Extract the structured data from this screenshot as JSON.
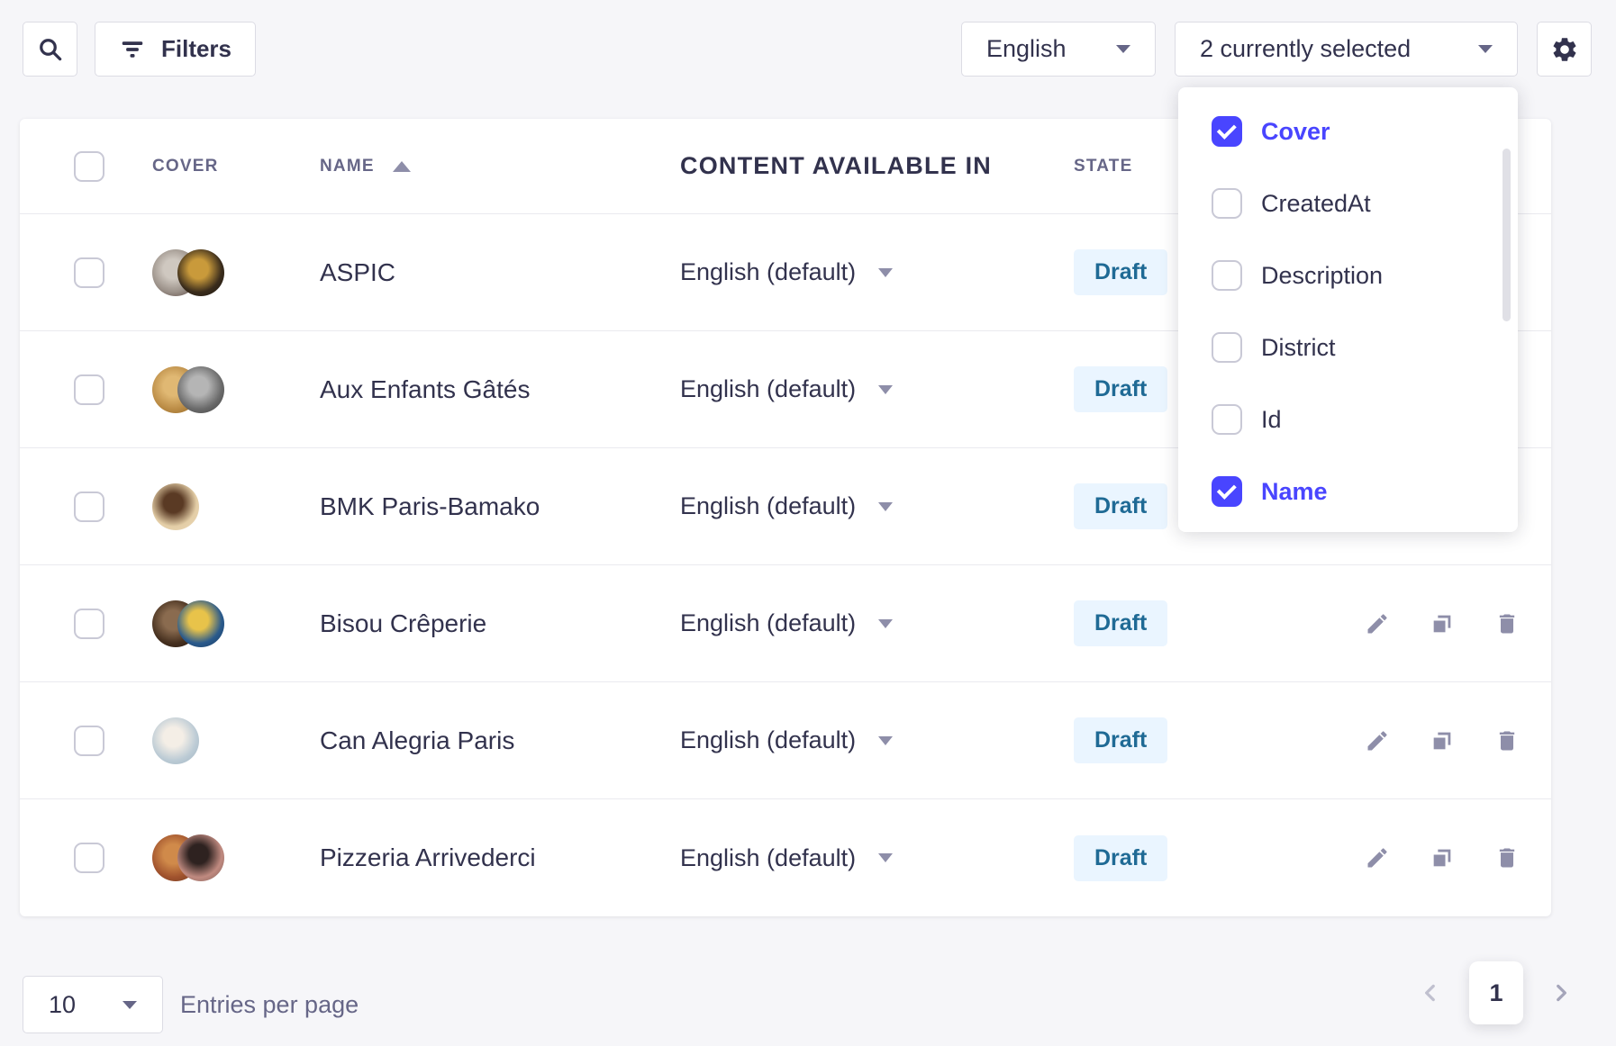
{
  "toolbar": {
    "filters_button": {
      "label": "Filters"
    },
    "language_select": {
      "value": "English"
    },
    "columns_select": {
      "value": "2 currently selected"
    }
  },
  "column_picker": {
    "options": [
      {
        "label": "Cover",
        "checked": true
      },
      {
        "label": "CreatedAt",
        "checked": false
      },
      {
        "label": "Description",
        "checked": false
      },
      {
        "label": "District",
        "checked": false
      },
      {
        "label": "Id",
        "checked": false
      },
      {
        "label": "Name",
        "checked": true
      }
    ]
  },
  "table": {
    "headers": {
      "cover": "COVER",
      "name": "NAME",
      "content_available_in": "CONTENT AVAILABLE IN",
      "state": "STATE"
    },
    "sort": {
      "column": "NAME",
      "direction": "ascending"
    },
    "rows": [
      {
        "name": "ASPIC",
        "language": "English (default)",
        "state": "Draft",
        "covers": [
          [
            "#cfc8c0",
            "#9a9088",
            "#4a3430"
          ],
          [
            "#c99a3b",
            "#3a2c1c",
            "#16120d"
          ]
        ]
      },
      {
        "name": "Aux Enfants Gâtés",
        "language": "English (default)",
        "state": "Draft",
        "covers": [
          [
            "#e0b873",
            "#bb8c46",
            "#8a6220"
          ],
          [
            "#b5b5b5",
            "#6a6a6a",
            "#3d3d3d"
          ]
        ]
      },
      {
        "name": "BMK Paris-Bamako",
        "language": "English (default)",
        "state": "Draft",
        "covers": [
          [
            "#5a3a24",
            "#e3cda6",
            "#eedcbc"
          ]
        ]
      },
      {
        "name": "Bisou Crêperie",
        "language": "English (default)",
        "state": "Draft",
        "covers": [
          [
            "#8a6b4f",
            "#46301f",
            "#241510"
          ],
          [
            "#e8c34a",
            "#2a5a8c",
            "#16365c"
          ]
        ]
      },
      {
        "name": "Can Alegria Paris",
        "language": "English (default)",
        "state": "Draft",
        "covers": [
          [
            "#f4eee6",
            "#bccbd5",
            "#9db2c0"
          ]
        ]
      },
      {
        "name": "Pizzeria Arrivederci",
        "language": "English (default)",
        "state": "Draft",
        "covers": [
          [
            "#d08a4a",
            "#a0522d",
            "#6b3a22"
          ],
          [
            "#2e2220",
            "#c08a80",
            "#7a5a52"
          ]
        ]
      }
    ]
  },
  "pagination": {
    "page_size": "10",
    "entries_label": "Entries per page",
    "current_page": "1"
  },
  "colors": {
    "primary": "#4945FF",
    "background": "#F6F6F9",
    "surface": "#FFFFFF",
    "border": "#DCDCE4",
    "divider": "#EAEAEF",
    "text_dark": "#32324D",
    "text_gray": "#666687",
    "icon_gray": "#8E8EA9",
    "disabled": "#C0C0CF",
    "draft_badge_bg": "#EAF5FF",
    "draft_badge_text": "#1F6A95"
  }
}
